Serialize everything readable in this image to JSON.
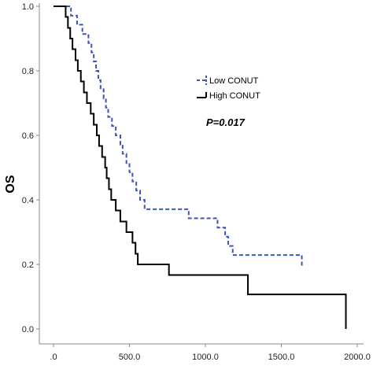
{
  "chart_data": {
    "type": "line",
    "step": true,
    "ylabel": "OS",
    "xlabel": "",
    "xlim": [
      0,
      2000
    ],
    "ylim": [
      0,
      1.0
    ],
    "x_ticks": [
      0,
      500,
      1000,
      1500,
      2000
    ],
    "x_tick_labels": [
      ".0",
      "500.0",
      "1000.0",
      "1500.0",
      "2000.0"
    ],
    "y_ticks": [
      0,
      0.2,
      0.4,
      0.6,
      0.8,
      1.0
    ],
    "y_tick_labels": [
      "0.0",
      "0.2",
      "0.4",
      "0.6",
      "0.8",
      "1.0"
    ],
    "grid": false,
    "legend_position": "upper-right",
    "annotation": "P=0.017",
    "series": [
      {
        "name": "Low CONUT",
        "color": "#3a56b0",
        "dash": "dashed",
        "points": [
          [
            0,
            1.0
          ],
          [
            115,
            0.971
          ],
          [
            155,
            0.943
          ],
          [
            190,
            0.914
          ],
          [
            230,
            0.886
          ],
          [
            250,
            0.857
          ],
          [
            265,
            0.829
          ],
          [
            280,
            0.8
          ],
          [
            295,
            0.771
          ],
          [
            310,
            0.743
          ],
          [
            330,
            0.714
          ],
          [
            345,
            0.686
          ],
          [
            360,
            0.657
          ],
          [
            385,
            0.629
          ],
          [
            410,
            0.6
          ],
          [
            440,
            0.571
          ],
          [
            455,
            0.543
          ],
          [
            480,
            0.514
          ],
          [
            500,
            0.486
          ],
          [
            520,
            0.457
          ],
          [
            545,
            0.429
          ],
          [
            570,
            0.4
          ],
          [
            600,
            0.371
          ],
          [
            710,
            0.371
          ],
          [
            720,
            0.371
          ],
          [
            890,
            0.343
          ],
          [
            1050,
            0.343
          ],
          [
            1080,
            0.314
          ],
          [
            1100,
            0.314
          ],
          [
            1130,
            0.286
          ],
          [
            1150,
            0.257
          ],
          [
            1180,
            0.229
          ],
          [
            1590,
            0.229
          ],
          [
            1635,
            0.189
          ]
        ],
        "end_x": 1635
      },
      {
        "name": "High CONUT",
        "color": "#000000",
        "dash": "solid",
        "points": [
          [
            0,
            1.0
          ],
          [
            80,
            0.967
          ],
          [
            95,
            0.933
          ],
          [
            110,
            0.9
          ],
          [
            125,
            0.867
          ],
          [
            145,
            0.833
          ],
          [
            160,
            0.8
          ],
          [
            180,
            0.767
          ],
          [
            200,
            0.733
          ],
          [
            220,
            0.7
          ],
          [
            245,
            0.667
          ],
          [
            265,
            0.633
          ],
          [
            285,
            0.6
          ],
          [
            300,
            0.567
          ],
          [
            320,
            0.533
          ],
          [
            340,
            0.5
          ],
          [
            350,
            0.467
          ],
          [
            365,
            0.433
          ],
          [
            380,
            0.4
          ],
          [
            410,
            0.367
          ],
          [
            440,
            0.333
          ],
          [
            480,
            0.3
          ],
          [
            520,
            0.267
          ],
          [
            540,
            0.233
          ],
          [
            555,
            0.2
          ],
          [
            760,
            0.167
          ],
          [
            1280,
            0.107
          ],
          [
            1925,
            0.0
          ]
        ],
        "end_x": 1925
      }
    ]
  }
}
